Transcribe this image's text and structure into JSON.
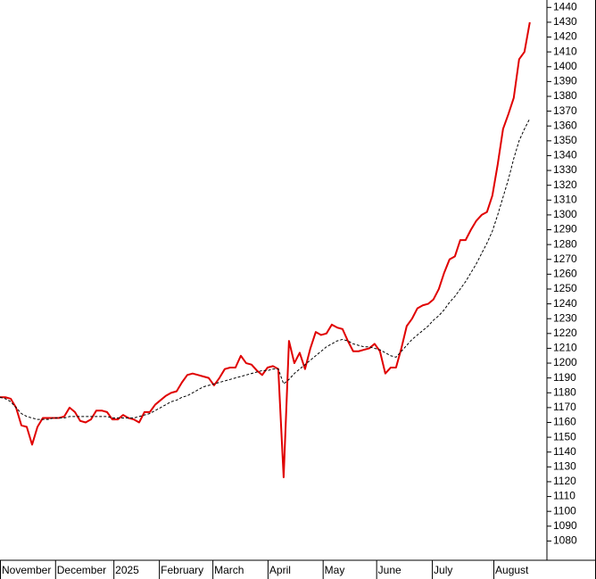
{
  "chart_data": {
    "type": "line",
    "x": [
      0,
      1,
      2,
      3,
      4,
      5,
      6,
      7,
      8,
      9,
      10,
      11,
      12,
      13,
      14,
      15,
      16,
      17,
      18,
      19,
      20,
      21,
      22,
      23,
      24,
      25,
      26,
      27,
      28,
      29,
      30,
      31,
      32,
      33,
      34,
      35,
      36,
      37,
      38,
      39,
      40,
      41,
      42,
      43,
      44,
      45,
      46,
      47,
      48,
      49,
      50,
      51,
      52,
      53,
      54,
      55,
      56,
      57,
      58,
      59,
      60,
      61,
      62,
      63,
      64,
      65,
      66,
      67,
      68,
      69,
      70,
      71,
      72,
      73,
      74,
      75,
      76,
      77,
      78,
      79,
      80,
      81,
      82,
      83,
      84,
      85,
      86,
      87,
      88,
      89,
      90,
      91,
      92,
      93,
      94,
      95,
      96,
      97,
      98,
      99
    ],
    "series": [
      {
        "color": "#e00000",
        "style": "solid",
        "values": [
          1177,
          1177,
          1176,
          1170,
          1158,
          1157,
          1145,
          1157,
          1163,
          1163,
          1163,
          1163,
          1164,
          1170,
          1167,
          1161,
          1160,
          1162,
          1168,
          1168,
          1167,
          1162,
          1162,
          1165,
          1163,
          1162,
          1160,
          1167,
          1167,
          1172,
          1175,
          1178,
          1180,
          1181,
          1187,
          1192,
          1193,
          1192,
          1191,
          1190,
          1185,
          1190,
          1196,
          1197,
          1197,
          1205,
          1200,
          1199,
          1195,
          1192,
          1197,
          1198,
          1196,
          1123,
          1215,
          1200,
          1207,
          1196,
          1210,
          1221,
          1219,
          1220,
          1226,
          1224,
          1223,
          1215,
          1208,
          1208,
          1209,
          1210,
          1213,
          1208,
          1193,
          1197,
          1197,
          1210,
          1225,
          1230,
          1237,
          1239,
          1240,
          1243,
          1250,
          1261,
          1270,
          1272,
          1283,
          1283,
          1290,
          1296,
          1300,
          1302,
          1313,
          1334,
          1358,
          1368,
          1379,
          1405,
          1410,
          1430
        ]
      },
      {
        "color": "#000000",
        "style": "dashed",
        "values": [
          1177,
          1176,
          1174,
          1170,
          1166,
          1164,
          1163,
          1162,
          1162,
          1162,
          1163,
          1163,
          1163,
          1164,
          1164,
          1164,
          1164,
          1164,
          1164,
          1164,
          1164,
          1163,
          1163,
          1163,
          1163,
          1163,
          1164,
          1165,
          1166,
          1168,
          1170,
          1172,
          1174,
          1175,
          1177,
          1178,
          1180,
          1182,
          1184,
          1185,
          1186,
          1187,
          1188,
          1189,
          1190,
          1191,
          1192,
          1193,
          1194,
          1195,
          1195,
          1196,
          1196,
          1186,
          1189,
          1193,
          1196,
          1199,
          1202,
          1205,
          1208,
          1211,
          1213,
          1215,
          1216,
          1215,
          1213,
          1212,
          1211,
          1211,
          1210,
          1209,
          1207,
          1205,
          1204,
          1208,
          1212,
          1216,
          1219,
          1222,
          1225,
          1229,
          1232,
          1236,
          1241,
          1245,
          1250,
          1255,
          1261,
          1267,
          1274,
          1281,
          1289,
          1300,
          1312,
          1324,
          1338,
          1350,
          1358,
          1365
        ]
      }
    ],
    "xlim": [
      0,
      102.2
    ],
    "xticks": [
      {
        "value": 0,
        "label": "November"
      },
      {
        "value": 10.3,
        "label": "December"
      },
      {
        "value": 21.2,
        "label": "2025"
      },
      {
        "value": 29.7,
        "label": "February"
      },
      {
        "value": 39.7,
        "label": "March"
      },
      {
        "value": 50,
        "label": "April"
      },
      {
        "value": 60.3,
        "label": "May"
      },
      {
        "value": 70.3,
        "label": "June"
      },
      {
        "value": 80.7,
        "label": "July"
      },
      {
        "value": 92.2,
        "label": "August"
      }
    ],
    "ylim": [
      1067,
      1445
    ],
    "yticks": [
      1080,
      1090,
      1100,
      1110,
      1120,
      1130,
      1140,
      1150,
      1160,
      1170,
      1180,
      1190,
      1200,
      1210,
      1220,
      1230,
      1240,
      1250,
      1260,
      1270,
      1280,
      1290,
      1300,
      1310,
      1320,
      1330,
      1340,
      1350,
      1360,
      1370,
      1380,
      1390,
      1400,
      1410,
      1420,
      1430,
      1440
    ]
  }
}
